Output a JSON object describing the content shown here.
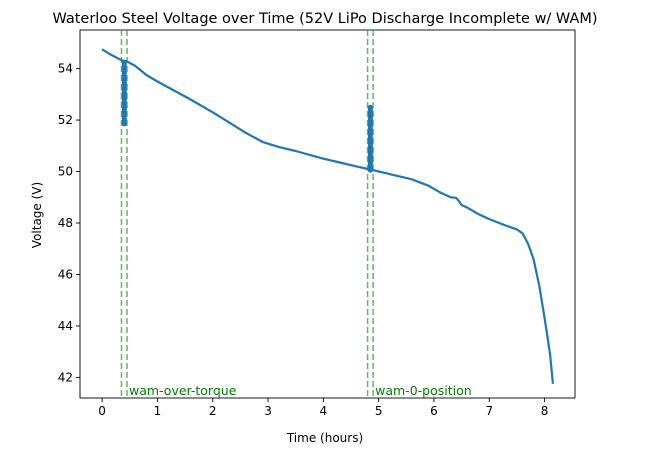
{
  "chart_data": {
    "type": "line",
    "title": "Waterloo Steel Voltage over Time (52V LiPo Discharge Incomplete w/ WAM)",
    "xlabel": "Time (hours)",
    "ylabel": "Voltage (V)",
    "xlim": [
      -0.4,
      8.55
    ],
    "ylim": [
      41.2,
      55.5
    ],
    "xticks": [
      0,
      1,
      2,
      3,
      4,
      5,
      6,
      7,
      8
    ],
    "yticks": [
      42,
      44,
      46,
      48,
      50,
      52,
      54
    ],
    "grid": false,
    "legend": "none",
    "colors": {
      "series": "#1f77b4",
      "annotation": "#008000",
      "annotation_line": "#2ca02c"
    },
    "series": [
      {
        "x": [
          0.0,
          0.15,
          0.3,
          0.38,
          0.45,
          0.6,
          0.8,
          1.0,
          1.3,
          1.6,
          2.0,
          2.3,
          2.6,
          2.9,
          3.2,
          3.5,
          4.0,
          4.3,
          4.6,
          4.85,
          5.0,
          5.3,
          5.6,
          5.9,
          6.1,
          6.3,
          6.4,
          6.45,
          6.5,
          6.55,
          6.6,
          6.8,
          7.0,
          7.3,
          7.5,
          7.6,
          7.7,
          7.8,
          7.9,
          8.0,
          8.1,
          8.15
        ],
        "y": [
          54.75,
          54.55,
          54.38,
          54.3,
          54.28,
          54.1,
          53.75,
          53.5,
          53.15,
          52.8,
          52.3,
          51.9,
          51.5,
          51.15,
          50.95,
          50.8,
          50.5,
          50.35,
          50.2,
          50.08,
          50.0,
          49.85,
          49.7,
          49.45,
          49.2,
          49.0,
          48.98,
          48.85,
          48.7,
          48.65,
          48.6,
          48.35,
          48.15,
          47.9,
          47.75,
          47.6,
          47.2,
          46.6,
          45.6,
          44.3,
          42.9,
          41.75
        ]
      }
    ],
    "spikes": [
      {
        "x": 0.4,
        "y_low": 51.85,
        "y_high": 54.25
      },
      {
        "x": 4.85,
        "y_low": 50.05,
        "y_high": 52.5
      }
    ],
    "annotations": [
      {
        "label": "wam-over-torque",
        "x_lines": [
          0.35,
          0.45
        ]
      },
      {
        "label": "wam-0-position",
        "x_lines": [
          4.8,
          4.9
        ]
      }
    ]
  }
}
